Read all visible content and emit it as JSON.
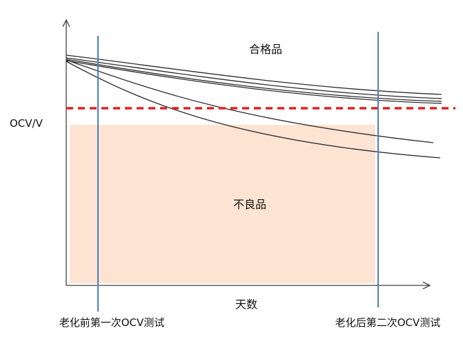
{
  "labels": {
    "y_axis": "OCV/V",
    "x_axis": "天数",
    "pass_region": "合格品",
    "reject_region": "不良品",
    "test_before": "老化前第一次OCV测试",
    "test_after": "老化后第二次OCV测试"
  },
  "colors": {
    "reject_fill": "#fde4d2",
    "threshold": "#e02020",
    "test_line": "#4a7ebb",
    "curve": "#2a2a2a",
    "axis": "#404040"
  }
}
